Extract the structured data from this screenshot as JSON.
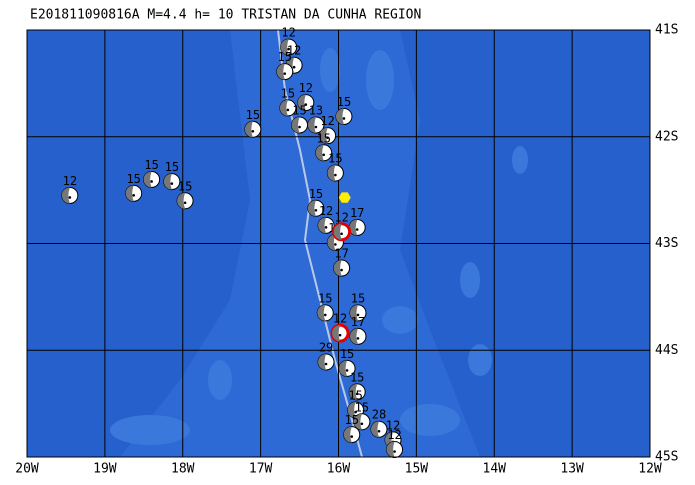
{
  "map": {
    "title": "E201811090816A  M=4.4  h= 10  TRISTAN DA CUNHA REGION",
    "lonlim": [
      -20,
      -12
    ],
    "latlim": [
      -45,
      -41
    ],
    "lonticks": [
      {
        "value": -20,
        "label": "20W"
      },
      {
        "value": -19,
        "label": "19W"
      },
      {
        "value": -18,
        "label": "18W"
      },
      {
        "value": -17,
        "label": "17W"
      },
      {
        "value": -16,
        "label": "16W"
      },
      {
        "value": -15,
        "label": "15W"
      },
      {
        "value": -14,
        "label": "14W"
      },
      {
        "value": -13,
        "label": "13W"
      },
      {
        "value": -12,
        "label": "12W"
      }
    ],
    "latticks": [
      {
        "value": -41,
        "label": "41S"
      },
      {
        "value": -42,
        "label": "42S"
      },
      {
        "value": -43,
        "label": "43S"
      },
      {
        "value": -44,
        "label": "44S"
      },
      {
        "value": -45,
        "label": "45S"
      }
    ],
    "epicenter": [
      -15.92,
      -42.57
    ],
    "events": [
      {
        "lon": -19.45,
        "lat": -42.55,
        "depth": "12"
      },
      {
        "lon": -18.63,
        "lat": -42.53,
        "depth": "15"
      },
      {
        "lon": -18.4,
        "lat": -42.4,
        "depth": "15"
      },
      {
        "lon": -18.14,
        "lat": -42.42,
        "depth": "15"
      },
      {
        "lon": -17.97,
        "lat": -42.6,
        "depth": "15"
      },
      {
        "lon": -17.1,
        "lat": -41.93,
        "depth": "15"
      },
      {
        "lon": -16.64,
        "lat": -41.16,
        "depth": "12"
      },
      {
        "lon": -16.57,
        "lat": -41.33,
        "depth": "12"
      },
      {
        "lon": -16.69,
        "lat": -41.39,
        "depth": "15"
      },
      {
        "lon": -16.65,
        "lat": -41.73,
        "depth": "15"
      },
      {
        "lon": -16.42,
        "lat": -41.68,
        "depth": "12"
      },
      {
        "lon": -16.5,
        "lat": -41.89,
        "depth": "15"
      },
      {
        "lon": -16.29,
        "lat": -41.89,
        "depth": "13"
      },
      {
        "lon": -16.14,
        "lat": -41.99,
        "depth": "12"
      },
      {
        "lon": -15.93,
        "lat": -41.81,
        "depth": "15"
      },
      {
        "lon": -16.19,
        "lat": -42.15,
        "depth": "15"
      },
      {
        "lon": -16.04,
        "lat": -42.34,
        "depth": "15"
      },
      {
        "lon": -16.29,
        "lat": -42.67,
        "depth": "15"
      },
      {
        "lon": -16.16,
        "lat": -42.83,
        "depth": "12"
      },
      {
        "lon": -15.76,
        "lat": -42.85,
        "depth": "17"
      },
      {
        "lon": -16.04,
        "lat": -42.99,
        "depth": "17"
      },
      {
        "lon": -15.96,
        "lat": -42.89,
        "depth": "12",
        "highlight": true
      },
      {
        "lon": -15.96,
        "lat": -43.23,
        "depth": "17"
      },
      {
        "lon": -16.17,
        "lat": -43.65,
        "depth": "15"
      },
      {
        "lon": -15.75,
        "lat": -43.65,
        "depth": "15"
      },
      {
        "lon": -15.98,
        "lat": -43.84,
        "depth": "12",
        "highlight": true
      },
      {
        "lon": -15.75,
        "lat": -43.87,
        "depth": "17"
      },
      {
        "lon": -16.16,
        "lat": -44.11,
        "depth": "29"
      },
      {
        "lon": -15.89,
        "lat": -44.17,
        "depth": "15"
      },
      {
        "lon": -15.76,
        "lat": -44.39,
        "depth": "15"
      },
      {
        "lon": -15.78,
        "lat": -44.56,
        "depth": "15"
      },
      {
        "lon": -15.48,
        "lat": -44.74,
        "depth": "28"
      },
      {
        "lon": -15.3,
        "lat": -44.84,
        "depth": "12"
      },
      {
        "lon": -15.7,
        "lat": -44.67,
        "depth": "15"
      },
      {
        "lon": -15.83,
        "lat": -44.79,
        "depth": "15"
      },
      {
        "lon": -15.28,
        "lat": -44.93,
        "depth": "12"
      }
    ]
  }
}
